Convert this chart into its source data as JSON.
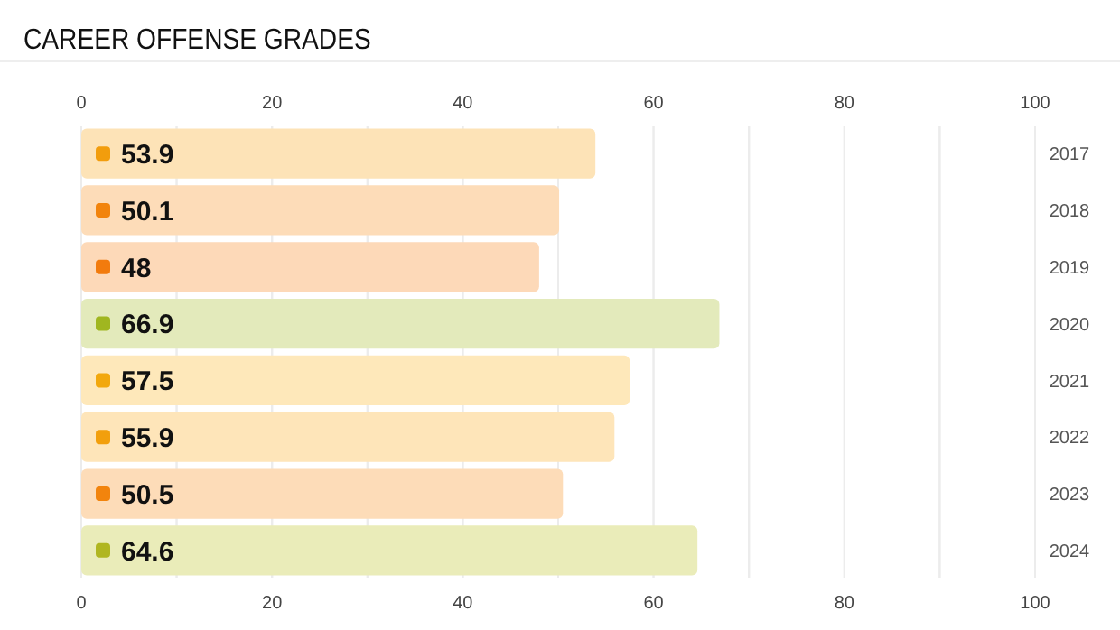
{
  "chart_data": {
    "type": "bar",
    "orientation": "horizontal",
    "title": "CAREER OFFENSE GRADES",
    "categories": [
      "2017",
      "2018",
      "2019",
      "2020",
      "2021",
      "2022",
      "2023",
      "2024"
    ],
    "values": [
      53.9,
      50.1,
      48,
      66.9,
      57.5,
      55.9,
      50.5,
      64.6
    ],
    "colors": [
      "#fde3b7",
      "#fddcb8",
      "#fdd9b8",
      "#e3eabb",
      "#fee8ba",
      "#fee5b9",
      "#fddcb8",
      "#eaecb9"
    ],
    "xlim": [
      0,
      100
    ],
    "xticks": [
      0,
      {
        "value": 10,
        "label": null
      },
      20,
      {
        "value": 30,
        "label": null
      },
      40,
      {
        "value": 50,
        "label": null
      },
      60,
      {
        "value": 70,
        "label": null
      },
      80,
      {
        "value": 90,
        "label": null
      },
      100
    ],
    "x2lim": [
      0,
      100
    ],
    "x2ticks": [
      0,
      {
        "value": 10,
        "label": null
      },
      20,
      {
        "value": 30,
        "label": null
      },
      40,
      {
        "value": 50,
        "label": null
      },
      60,
      {
        "value": 70,
        "label": null
      },
      80,
      {
        "value": 90,
        "label": null
      },
      100
    ],
    "grid": "x",
    "data_labels": true
  }
}
